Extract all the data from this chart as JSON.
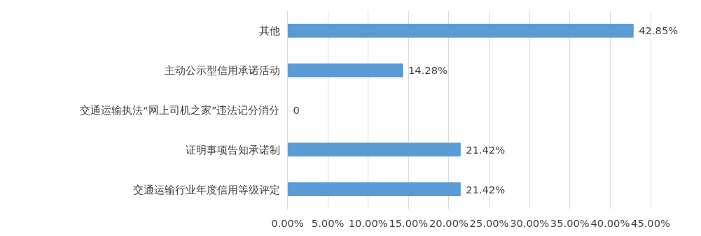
{
  "chart_data": {
    "type": "bar",
    "orientation": "horizontal",
    "categories": [
      "其他",
      "主动公示型信用承诺活动",
      "交通运输执法“网上司机之家”违法记分消分",
      "证明事项告知承诺制",
      "交通运输行业年度信用等级评定"
    ],
    "values": [
      42.85,
      14.28,
      0,
      21.42,
      21.42
    ],
    "value_labels": [
      "42.85%",
      "14.28%",
      "0",
      "21.42%",
      "21.42%"
    ],
    "color": "#5b9bd5",
    "xlim": [
      0,
      45
    ],
    "xticks": [
      {
        "value": 0,
        "label": "0.00%"
      },
      {
        "value": 5,
        "label": "5.00%"
      },
      {
        "value": 10,
        "label": "10.00%"
      },
      {
        "value": 15,
        "label": "15.00%"
      },
      {
        "value": 20,
        "label": "20.00%"
      },
      {
        "value": 25,
        "label": "25.00%"
      },
      {
        "value": 30,
        "label": "30.00%"
      },
      {
        "value": 35,
        "label": "35.00%"
      },
      {
        "value": 40,
        "label": "40.00%"
      },
      {
        "value": 45,
        "label": "45.00%"
      }
    ],
    "grid": "x"
  }
}
